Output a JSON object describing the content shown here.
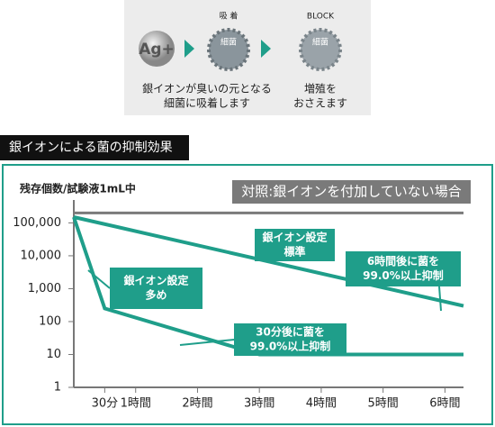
{
  "diagram": {
    "ion": "Ag+",
    "adsorb": "吸 着",
    "germ1": "細菌",
    "block": "BLOCK",
    "germ2": "細菌",
    "caption1": [
      "銀イオンが臭いの元となる",
      "細菌に吸着します"
    ],
    "caption2": [
      "増殖を",
      "おさえます"
    ]
  },
  "chart_data": {
    "type": "line",
    "title": "銀イオンによる菌の抑制効果",
    "y_label": "残存個数/試験液1mL中",
    "log_y": true,
    "xlim": [
      0,
      6.3
    ],
    "ylim": [
      1,
      300000
    ],
    "xticks": [
      {
        "value": 0.5,
        "label": "30分"
      },
      {
        "value": 1,
        "label": "1時間"
      },
      {
        "value": 2,
        "label": "2時間"
      },
      {
        "value": 3,
        "label": "3時間"
      },
      {
        "value": 4,
        "label": "4時間"
      },
      {
        "value": 5,
        "label": "5時間"
      },
      {
        "value": 6,
        "label": "6時間"
      }
    ],
    "yticks": [
      1,
      10,
      100,
      {
        "value": 1000,
        "label": "1,000"
      },
      {
        "value": 10000,
        "label": "10,000"
      },
      {
        "value": 100000,
        "label": "100,000"
      }
    ],
    "series": [
      {
        "color": "#7a7a7a",
        "x": [
          0,
          6.3
        ],
        "values": [
          200000,
          200000
        ]
      },
      {
        "color": "#1f9e8a",
        "x": [
          0,
          6.3
        ],
        "values": [
          150000,
          300
        ]
      },
      {
        "color": "#1f9e8a",
        "x": [
          0,
          0.5,
          3,
          6.3
        ],
        "values": [
          150000,
          250,
          10,
          10
        ]
      }
    ],
    "annotations": [
      {
        "lines": [
          "対照:銀イオンを付加していない場合"
        ],
        "color": "#7a7a7a"
      },
      {
        "lines": [
          "銀イオン設定",
          "標準"
        ],
        "color": "#1f9e8a"
      },
      {
        "lines": [
          "6時間後に菌を",
          "99.0%以上抑制"
        ],
        "color": "#1f9e8a"
      },
      {
        "lines": [
          "銀イオン設定",
          "多め"
        ],
        "color": "#1f9e8a"
      },
      {
        "lines": [
          "30分後に菌を",
          "99.0%以上抑制"
        ],
        "color": "#1f9e8a"
      }
    ]
  }
}
